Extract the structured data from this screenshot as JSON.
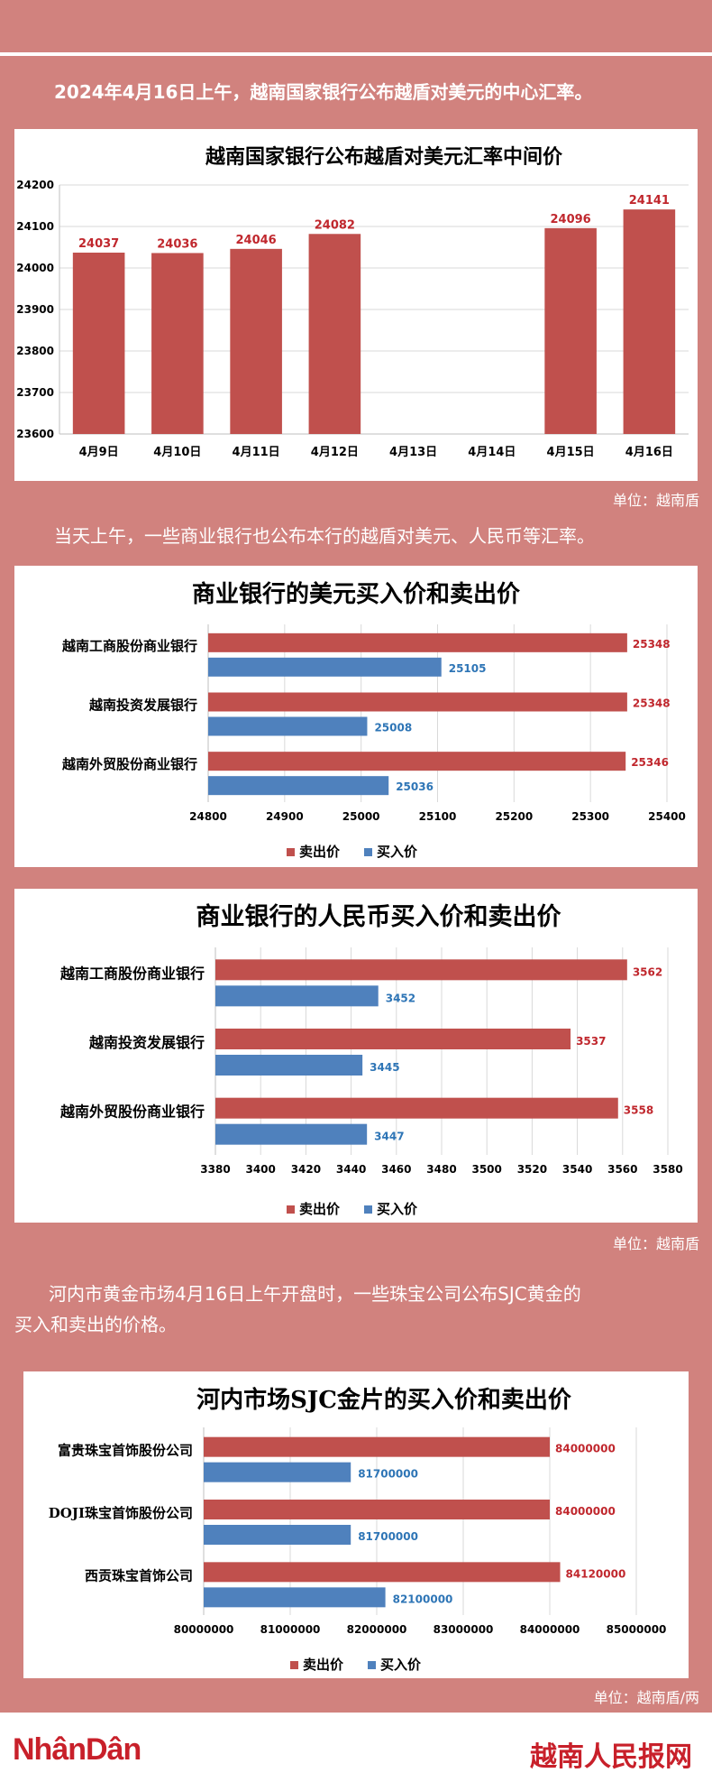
{
  "intro": "2024年4月16日上午，越南国家银行公布越盾对美元的中心汇率。",
  "para2": "当天上午，一些商业银行也公布本行的越盾对美元、人民币等汇率。",
  "para3_line1": "河内市黄金市场4月16日上午开盘时，一些珠宝公司公布SJC黄金的",
  "para3_line2": "买入和卖出的价格。",
  "unit1": "单位：越南盾",
  "unit2": "单位：越南盾",
  "unit3": "单位：越南盾/两",
  "footer": {
    "left_logo": "NhânDân",
    "right_logo": "越南人民报网"
  },
  "colors": {
    "background": "#d1827e",
    "sell": "#c0504d",
    "buy": "#4f81bd",
    "sell_label": "#c0272d",
    "buy_label": "#2e75b6"
  },
  "chart_data": [
    {
      "type": "bar",
      "title": "越南国家银行公布越盾对美元汇率中间价",
      "categories": [
        "4月9日",
        "4月10日",
        "4月11日",
        "4月12日",
        "4月13日",
        "4月14日",
        "4月15日",
        "4月16日"
      ],
      "values": [
        24037,
        24036,
        24046,
        24082,
        null,
        null,
        24096,
        24141
      ],
      "ylim": [
        23600,
        24200
      ],
      "yticks": [
        23600,
        23700,
        23800,
        23900,
        24000,
        24100,
        24200
      ],
      "grid": true
    },
    {
      "type": "bar",
      "orientation": "horizontal",
      "title": "商业银行的美元买入价和卖出价",
      "categories": [
        "越南工商股份商业银行",
        "越南投资发展银行",
        "越南外贸股份商业银行"
      ],
      "series": [
        {
          "name": "卖出价",
          "values": [
            25348,
            25348,
            25346
          ]
        },
        {
          "name": "买入价",
          "values": [
            25105,
            25008,
            25036
          ]
        }
      ],
      "xlim": [
        24800,
        25400
      ],
      "xticks": [
        24800,
        24900,
        25000,
        25100,
        25200,
        25300,
        25400
      ],
      "legend": "bottom",
      "grid": true
    },
    {
      "type": "bar",
      "orientation": "horizontal",
      "title": "商业银行的人民币买入价和卖出价",
      "categories": [
        "越南工商股份商业银行",
        "越南投资发展银行",
        "越南外贸股份商业银行"
      ],
      "series": [
        {
          "name": "卖出价",
          "values": [
            3562,
            3537,
            3558
          ]
        },
        {
          "name": "买入价",
          "values": [
            3452,
            3445,
            3447
          ]
        }
      ],
      "xlim": [
        3380,
        3580
      ],
      "xticks": [
        3380,
        3400,
        3420,
        3440,
        3460,
        3480,
        3500,
        3520,
        3540,
        3560,
        3580
      ],
      "legend": "bottom",
      "grid": true
    },
    {
      "type": "bar",
      "orientation": "horizontal",
      "title": "河内市场SJC金片的买入价和卖出价",
      "categories": [
        "富贵珠宝首饰股份公司",
        "DOJI珠宝首饰股份公司",
        "西贡珠宝首饰公司"
      ],
      "series": [
        {
          "name": "卖出价",
          "values": [
            84000000,
            84000000,
            84120000
          ]
        },
        {
          "name": "买入价",
          "values": [
            81700000,
            81700000,
            82100000
          ]
        }
      ],
      "xlim": [
        80000000,
        85000000
      ],
      "xticks": [
        80000000,
        81000000,
        82000000,
        83000000,
        84000000,
        85000000
      ],
      "legend": "bottom",
      "grid": true
    }
  ]
}
